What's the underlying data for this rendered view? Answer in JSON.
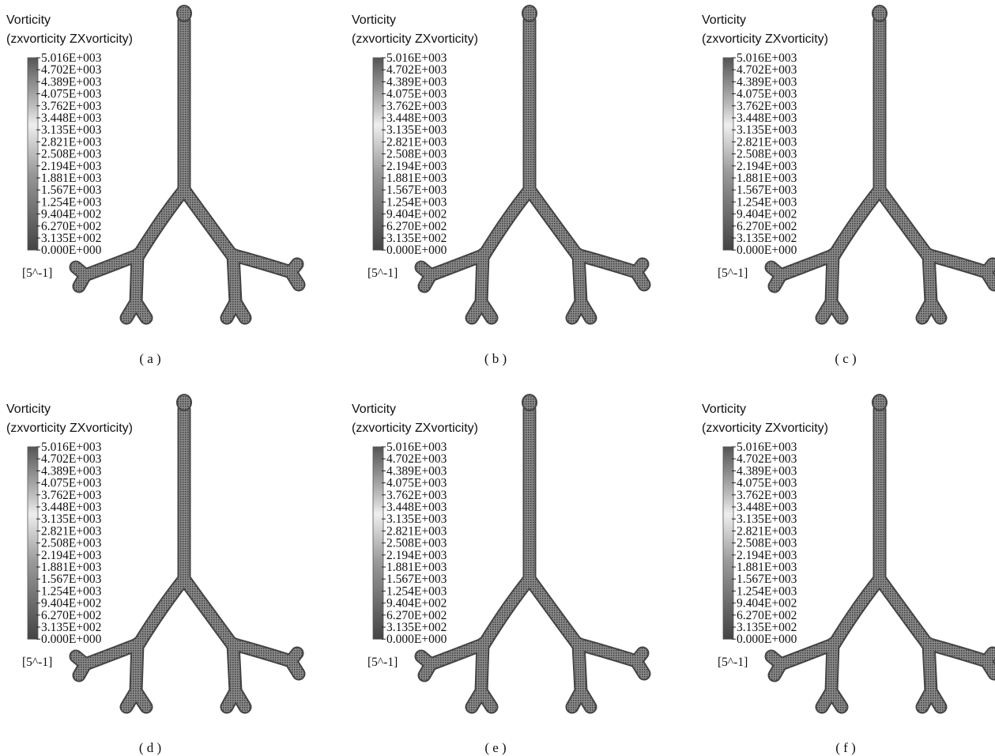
{
  "panels": [
    {
      "title": "Vorticity",
      "subtitle": "(zxvorticity ZXvorticity)",
      "legend_labels": [
        "5.016E+003",
        "4.702E+003",
        "4.389E+003",
        "4.075E+003",
        "3.762E+003",
        "3.448E+003",
        "3.135E+003",
        "2.821E+003",
        "2.508E+003",
        "2.194E+003",
        "1.881E+003",
        "1.567E+003",
        "1.254E+003",
        "9.404E+002",
        "6.270E+002",
        "3.135E+002",
        "0.000E+000"
      ],
      "unit": "[5^-1]",
      "caption": "( a )"
    },
    {
      "title": "Vorticity",
      "subtitle": "(zxvorticity ZXvorticity)",
      "legend_labels": [
        "5.016E+003",
        "4.702E+003",
        "4.389E+003",
        "4.075E+003",
        "3.762E+003",
        "3.448E+003",
        "3.135E+003",
        "2.821E+003",
        "2.508E+003",
        "2.194E+003",
        "1.881E+003",
        "1.567E+003",
        "1.254E+003",
        "9.404E+002",
        "6.270E+002",
        "3.135E+002",
        "0.000E+000"
      ],
      "unit": "[5^-1]",
      "caption": "( b )"
    },
    {
      "title": "Vorticity",
      "subtitle": "(zxvorticity ZXvorticity)",
      "legend_labels": [
        "5.016E+003",
        "4.702E+003",
        "4.389E+003",
        "4.075E+003",
        "3.762E+003",
        "3.448E+003",
        "3.135E+003",
        "2.821E+003",
        "2.508E+003",
        "2.194E+003",
        "1.881E+003",
        "1.567E+003",
        "1.254E+003",
        "9.404E+002",
        "6.270E+002",
        "3.135E+002",
        "0.000E+000"
      ],
      "unit": "[5^-1]",
      "caption": "( c )"
    },
    {
      "title": "Vorticity",
      "subtitle": "(zxvorticity ZXvorticity)",
      "legend_labels": [
        "5.016E+003",
        "4.702E+003",
        "4.389E+003",
        "4.075E+003",
        "3.762E+003",
        "3.448E+003",
        "3.135E+003",
        "2.821E+003",
        "2.508E+003",
        "2.194E+003",
        "1.881E+003",
        "1.567E+003",
        "1.254E+003",
        "9.404E+002",
        "6.270E+002",
        "3.135E+002",
        "0.000E+000"
      ],
      "unit": "[5^-1]",
      "caption": "( d )"
    },
    {
      "title": "Vorticity",
      "subtitle": "(zxvorticity ZXvorticity)",
      "legend_labels": [
        "5.016E+003",
        "4.702E+003",
        "4.389E+003",
        "4.075E+003",
        "3.762E+003",
        "3.448E+003",
        "3.135E+003",
        "2.821E+003",
        "2.508E+003",
        "2.194E+003",
        "1.881E+003",
        "1.567E+003",
        "1.254E+003",
        "9.404E+002",
        "6.270E+002",
        "3.135E+002",
        "0.000E+000"
      ],
      "unit": "[5^-1]",
      "caption": "( e )"
    },
    {
      "title": "Vorticity",
      "subtitle": "(zxvorticity ZXvorticity)",
      "legend_labels": [
        "5.016E+003",
        "4.702E+003",
        "4.389E+003",
        "4.075E+003",
        "3.762E+003",
        "3.448E+003",
        "3.135E+003",
        "2.821E+003",
        "2.508E+003",
        "2.194E+003",
        "1.881E+003",
        "1.567E+003",
        "1.254E+003",
        "9.404E+002",
        "6.270E+002",
        "3.135E+002",
        "0.000E+000"
      ],
      "unit": "[5^-1]",
      "caption": "( f )"
    }
  ]
}
